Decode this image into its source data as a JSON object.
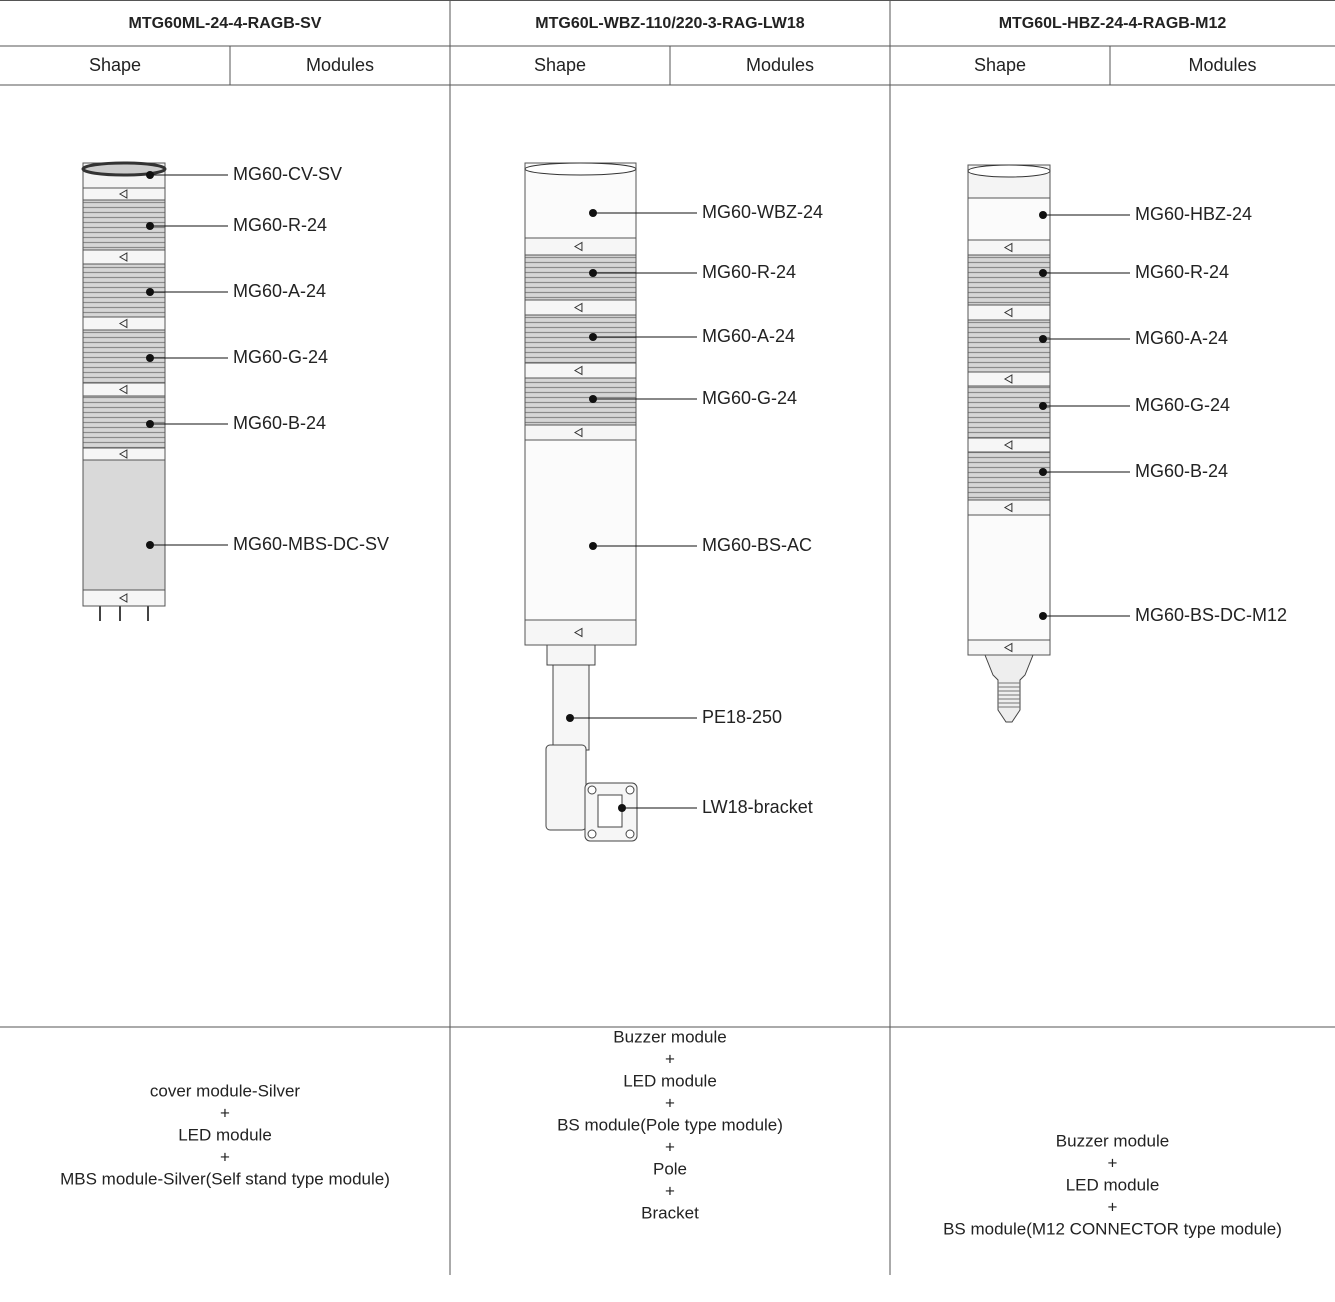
{
  "columns": [
    {
      "title": "MTG60ML-24-4-RAGB-SV",
      "shape_label": "Shape",
      "modules_label": "Modules",
      "parts": [
        "MG60-CV-SV",
        "MG60-R-24",
        "MG60-A-24",
        "MG60-G-24",
        "MG60-B-24",
        "MG60-MBS-DC-SV"
      ],
      "description": [
        "cover module-Silver",
        "+",
        "LED module",
        "+",
        "MBS module-Silver(Self stand type module)"
      ]
    },
    {
      "title": "MTG60L-WBZ-110/220-3-RAG-LW18",
      "shape_label": "Shape",
      "modules_label": "Modules",
      "parts": [
        "MG60-WBZ-24",
        "MG60-R-24",
        "MG60-A-24",
        "MG60-G-24",
        "MG60-BS-AC",
        "PE18-250",
        "LW18-bracket"
      ],
      "description": [
        "Buzzer module",
        "+",
        "LED module",
        "+",
        "BS module(Pole type module)",
        "+",
        "Pole",
        "+",
        "Bracket"
      ]
    },
    {
      "title": "MTG60L-HBZ-24-4-RAGB-M12",
      "shape_label": "Shape",
      "modules_label": "Modules",
      "parts": [
        "MG60-HBZ-24",
        "MG60-R-24",
        "MG60-A-24",
        "MG60-G-24",
        "MG60-B-24",
        "MG60-BS-DC-M12"
      ],
      "description": [
        "Buzzer module",
        "+",
        "LED module",
        "+",
        "BS module(M12 CONNECTOR type module)"
      ]
    }
  ]
}
